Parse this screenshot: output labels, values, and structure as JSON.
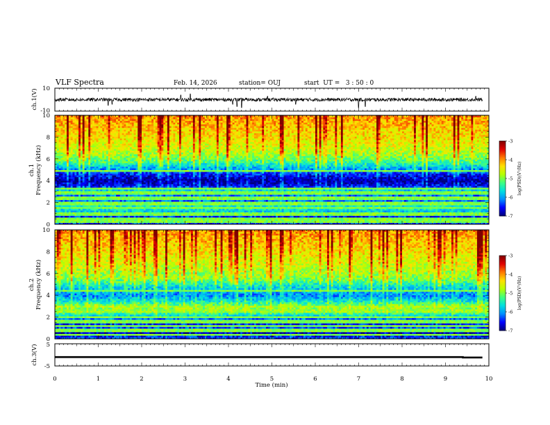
{
  "header": {
    "title": "VLF Spectra",
    "date": "Feb. 14, 2026",
    "station": "station= OUJ",
    "start": "start  UT =   3 : 50 : 0"
  },
  "colors": {
    "colormap": [
      "#00007a",
      "#0000ff",
      "#0090ff",
      "#00e0e0",
      "#40ff80",
      "#b8ff00",
      "#ffe000",
      "#ff7800",
      "#e00000",
      "#800000"
    ],
    "trace": "#000000",
    "background": "#ffffff"
  },
  "chart_data": [
    {
      "type": "line",
      "name": "ch1-waveform",
      "ylabel": "ch.1(V)",
      "ylim": [
        -10,
        10
      ],
      "yticks": [
        "10",
        "-10"
      ],
      "xlim": [
        0,
        10
      ],
      "baseline": 0,
      "noise_amplitude": 1.5,
      "spikes": [
        {
          "x": 1.23,
          "y": -5
        },
        {
          "x": 1.32,
          "y": -4
        },
        {
          "x": 2.9,
          "y": 4
        },
        {
          "x": 3.12,
          "y": 5
        },
        {
          "x": 4.1,
          "y": -4
        },
        {
          "x": 4.2,
          "y": -6
        },
        {
          "x": 4.3,
          "y": -7
        },
        {
          "x": 4.9,
          "y": 3
        },
        {
          "x": 5.55,
          "y": -4
        },
        {
          "x": 7.0,
          "y": -7
        },
        {
          "x": 7.15,
          "y": -6
        },
        {
          "x": 9.7,
          "y": 3
        }
      ]
    },
    {
      "type": "heatmap",
      "name": "ch1-spectrogram",
      "ylabel": "ch.1\nFrequency  (kHz)",
      "ylim": [
        0,
        10
      ],
      "yticks": [
        "0",
        "2",
        "4",
        "6",
        "8",
        "10"
      ],
      "xlim": [
        0,
        10
      ],
      "zlim": [
        -7,
        -3
      ],
      "colorbar_label": "log(PSD)(V²/Hz)",
      "colorbar_ticks": [
        "-3",
        "-4",
        "-5",
        "-6",
        "-7"
      ],
      "band_profile": [
        {
          "f": 0.0,
          "z": -6.2
        },
        {
          "f": 0.5,
          "z": -6.8
        },
        {
          "f": 1.0,
          "z": -6.0
        },
        {
          "f": 1.6,
          "z": -5.4
        },
        {
          "f": 2.0,
          "z": -6.0
        },
        {
          "f": 2.5,
          "z": -6.5
        },
        {
          "f": 3.0,
          "z": -5.5
        },
        {
          "f": 3.5,
          "z": -6.5
        },
        {
          "f": 4.0,
          "z": -6.9
        },
        {
          "f": 4.5,
          "z": -6.6
        },
        {
          "f": 5.2,
          "z": -5.9
        },
        {
          "f": 5.8,
          "z": -5.2
        },
        {
          "f": 6.5,
          "z": -4.8
        },
        {
          "f": 7.5,
          "z": -4.5
        },
        {
          "f": 8.5,
          "z": -4.3
        },
        {
          "f": 10.0,
          "z": -4.0
        }
      ],
      "tone_lines_khz": [
        0.3,
        0.6,
        1.0,
        1.5,
        1.9,
        2.4,
        2.9,
        3.3,
        4.9
      ]
    },
    {
      "type": "heatmap",
      "name": "ch2-spectrogram",
      "ylabel": "ch.2\nFrequency  (kHz)",
      "ylim": [
        0,
        10
      ],
      "yticks": [
        "0",
        "2",
        "4",
        "6",
        "8",
        "10"
      ],
      "xlim": [
        0,
        10
      ],
      "zlim": [
        -7,
        -3
      ],
      "colorbar_label": "log(PSD)(V²/Hz)",
      "colorbar_ticks": [
        "-3",
        "-4",
        "-5",
        "-6",
        "-7"
      ],
      "band_profile": [
        {
          "f": 0.0,
          "z": -6.2
        },
        {
          "f": 0.5,
          "z": -6.8
        },
        {
          "f": 1.0,
          "z": -6.3
        },
        {
          "f": 1.5,
          "z": -6.5
        },
        {
          "f": 2.0,
          "z": -6.0
        },
        {
          "f": 2.5,
          "z": -5.0
        },
        {
          "f": 3.0,
          "z": -4.9
        },
        {
          "f": 3.5,
          "z": -5.6
        },
        {
          "f": 4.0,
          "z": -6.1
        },
        {
          "f": 4.8,
          "z": -5.7
        },
        {
          "f": 5.5,
          "z": -5.0
        },
        {
          "f": 6.5,
          "z": -4.7
        },
        {
          "f": 7.5,
          "z": -4.5
        },
        {
          "f": 8.5,
          "z": -4.3
        },
        {
          "f": 10.0,
          "z": -4.0
        }
      ],
      "tone_lines_khz": [
        0.4,
        0.8,
        1.2,
        1.6,
        2.0,
        2.6,
        3.0,
        4.4
      ]
    },
    {
      "type": "line",
      "name": "ch3-level",
      "ylabel": "ch.3(V)",
      "ylim": [
        -5,
        5
      ],
      "yticks": [
        "5",
        "-5"
      ],
      "xlim": [
        0,
        10
      ],
      "x": [
        0,
        9.4,
        9.4,
        9.85
      ],
      "y": [
        -1.0,
        -1.0,
        -1.2,
        -1.2
      ],
      "xlabel": "Time  (min)",
      "xticks": [
        "0",
        "1",
        "2",
        "3",
        "4",
        "5",
        "6",
        "7",
        "8",
        "9",
        "10"
      ]
    }
  ]
}
